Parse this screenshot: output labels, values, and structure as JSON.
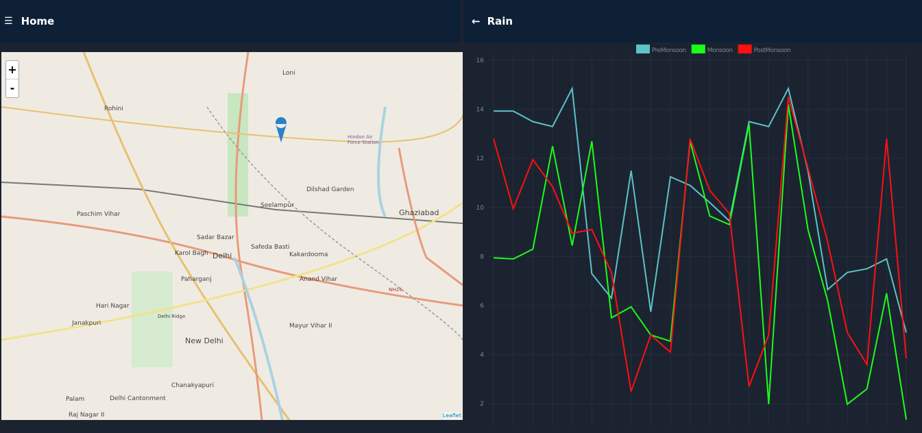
{
  "left_header": {
    "title": "Home",
    "menu_icon": "☰"
  },
  "map": {
    "zoom_in": "+",
    "zoom_out": "-",
    "attribution": "Leaflet",
    "labels": [
      "Rohini",
      "Loni",
      "Hindon Air Force Station",
      "Dilshad Garden",
      "Seelampur",
      "Ghaziabad",
      "Paschim Vihar",
      "Sadar Bazar",
      "Safeda Basti",
      "Karol Bagh",
      "Delhi",
      "Kakardooma",
      "Paharganj",
      "Anand Vihar",
      "Hari Nagar",
      "NH24",
      "Delhi Ridge",
      "Janakpuri",
      "New Delhi",
      "Mayur Vihar II",
      "Chanakyapuri",
      "Palam",
      "Delhi Cantonment",
      "Raj Nagar II"
    ]
  },
  "right_header": {
    "title": "Rain",
    "back_icon": "←"
  },
  "chart_data": {
    "type": "line",
    "categories": [
      null,
      null,
      null,
      null,
      null,
      null,
      null,
      null,
      null,
      null,
      null,
      null,
      null,
      null,
      null,
      null,
      null,
      null,
      null,
      null,
      null,
      null
    ],
    "series": [
      {
        "name": "PreMonsoon",
        "color": "#5bc4c8",
        "values": [
          13.93,
          13.93,
          13.5,
          13.3,
          14.85,
          7.3,
          6.3,
          11.5,
          5.75,
          11.25,
          10.9,
          10.2,
          9.45,
          13.5,
          13.3,
          14.85,
          11.5,
          6.65,
          7.35,
          7.5,
          7.9,
          4.9
        ]
      },
      {
        "name": "Monsoon",
        "color": "#1aff1a",
        "values": [
          7.95,
          7.9,
          8.3,
          12.5,
          8.45,
          12.7,
          5.5,
          5.95,
          4.8,
          4.55,
          12.7,
          9.65,
          9.3,
          13.4,
          1.98,
          14.2,
          9.1,
          6.2,
          1.98,
          2.6,
          6.5,
          1.35
        ]
      },
      {
        "name": "PostMonsoon",
        "color": "#ff1010",
        "values": [
          12.8,
          9.95,
          11.95,
          10.85,
          8.95,
          9.1,
          7.35,
          2.5,
          4.8,
          4.1,
          12.8,
          10.7,
          9.75,
          2.7,
          4.8,
          14.5,
          11.6,
          8.6,
          4.9,
          3.6,
          12.8,
          3.85
        ]
      }
    ],
    "ylim": [
      1,
      16
    ],
    "yticks": [
      2,
      4,
      6,
      8,
      10,
      12,
      14,
      16
    ],
    "grid": true
  }
}
